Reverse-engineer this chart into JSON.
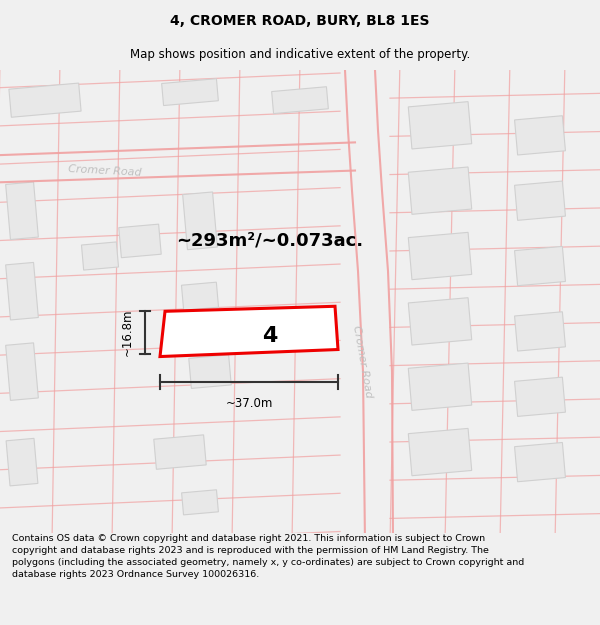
{
  "title": "4, CROMER ROAD, BURY, BL8 1ES",
  "subtitle": "Map shows position and indicative extent of the property.",
  "area_label": "~293m²/~0.073ac.",
  "property_number": "4",
  "width_label": "~37.0m",
  "height_label": "~16.8m",
  "footer": "Contains OS data © Crown copyright and database right 2021. This information is subject to Crown copyright and database rights 2023 and is reproduced with the permission of HM Land Registry. The polygons (including the associated geometry, namely x, y co-ordinates) are subject to Crown copyright and database rights 2023 Ordnance Survey 100026316.",
  "bg_color": "#f0f0f0",
  "map_bg": "#ffffff",
  "road_color": "#f0a0a0",
  "road_color2": "#e8b0b0",
  "building_fill": "#e8e8e8",
  "building_edge": "#d0d0d0",
  "property_edge": "#ee0000",
  "property_fill": "#ffffff",
  "road_label_color": "#c0c0c0",
  "dim_color": "#333333",
  "title_fontsize": 10,
  "subtitle_fontsize": 8.5,
  "footer_fontsize": 6.8,
  "area_fontsize": 13,
  "number_fontsize": 16
}
